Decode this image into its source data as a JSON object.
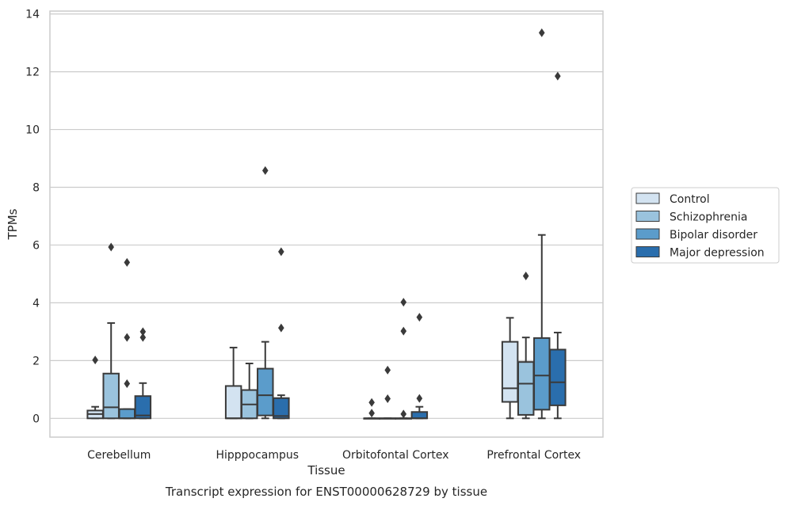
{
  "chart_data": {
    "type": "box",
    "title": "",
    "xlabel": "Tissue",
    "ylabel": "TPMs",
    "caption": "Transcript expression for ENST00000628729 by tissue",
    "ylim": [
      -0.65,
      14.1
    ],
    "yticks": [
      0,
      2,
      4,
      6,
      8,
      10,
      12,
      14
    ],
    "grid": "horizontal",
    "legend_position": "right",
    "categories": [
      "Cerebellum",
      "Hipppocampus",
      "Orbitofontal Cortex",
      "Prefrontal Cortex"
    ],
    "series": [
      {
        "name": "Control",
        "color": "#d3e3f1",
        "boxes": [
          {
            "whislo": 0,
            "q1": 0,
            "med": 0.15,
            "q3": 0.27,
            "whishi": 0.4,
            "fliers": [
              2.02
            ]
          },
          {
            "whislo": 0,
            "q1": 0,
            "med": 0,
            "q3": 1.12,
            "whishi": 2.45,
            "fliers": []
          },
          {
            "whislo": 0,
            "q1": 0,
            "med": 0,
            "q3": 0,
            "whishi": 0,
            "fliers": [
              0.55,
              0.18
            ]
          },
          {
            "whislo": 0,
            "q1": 0.57,
            "med": 1.04,
            "q3": 2.65,
            "whishi": 3.48,
            "fliers": []
          }
        ]
      },
      {
        "name": "Schizophrenia",
        "color": "#9ac3dd",
        "boxes": [
          {
            "whislo": 0,
            "q1": 0,
            "med": 0.38,
            "q3": 1.55,
            "whishi": 3.3,
            "fliers": [
              5.93
            ]
          },
          {
            "whislo": 0,
            "q1": 0,
            "med": 0.48,
            "q3": 0.98,
            "whishi": 1.9,
            "fliers": []
          },
          {
            "whislo": 0,
            "q1": 0,
            "med": 0,
            "q3": 0,
            "whishi": 0,
            "fliers": [
              1.67,
              0.68
            ]
          },
          {
            "whislo": 0,
            "q1": 0.12,
            "med": 1.2,
            "q3": 1.95,
            "whishi": 2.8,
            "fliers": [
              4.93
            ]
          }
        ]
      },
      {
        "name": "Bipolar disorder",
        "color": "#5b9ccb",
        "boxes": [
          {
            "whislo": 0,
            "q1": 0,
            "med": 0,
            "q3": 0.32,
            "whishi": 0.32,
            "fliers": [
              5.4,
              2.8,
              1.2
            ]
          },
          {
            "whislo": 0,
            "q1": 0.1,
            "med": 0.8,
            "q3": 1.72,
            "whishi": 2.65,
            "fliers": [
              8.58
            ]
          },
          {
            "whislo": 0,
            "q1": 0,
            "med": 0,
            "q3": 0,
            "whishi": 0,
            "fliers": [
              4.02,
              3.02,
              0.15
            ]
          },
          {
            "whislo": 0,
            "q1": 0.3,
            "med": 1.48,
            "q3": 2.78,
            "whishi": 6.35,
            "fliers": [
              13.35
            ]
          }
        ]
      },
      {
        "name": "Major depression",
        "color": "#2a6ead",
        "boxes": [
          {
            "whislo": 0,
            "q1": 0,
            "med": 0.1,
            "q3": 0.77,
            "whishi": 1.22,
            "fliers": [
              3.0,
              2.8
            ]
          },
          {
            "whislo": 0,
            "q1": 0,
            "med": 0.08,
            "q3": 0.7,
            "whishi": 0.8,
            "fliers": [
              5.77,
              3.13
            ]
          },
          {
            "whislo": 0,
            "q1": 0,
            "med": 0,
            "q3": 0.22,
            "whishi": 0.4,
            "fliers": [
              3.5,
              0.69
            ]
          },
          {
            "whislo": 0,
            "q1": 0.45,
            "med": 1.25,
            "q3": 2.38,
            "whishi": 2.97,
            "fliers": [
              11.85
            ]
          }
        ]
      }
    ]
  }
}
